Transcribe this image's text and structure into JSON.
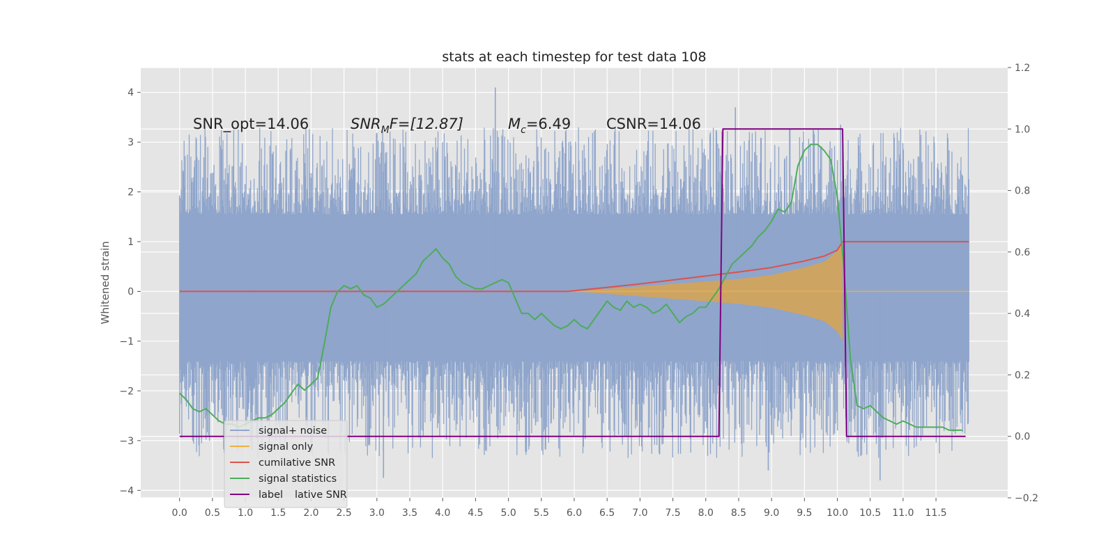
{
  "chart_data": {
    "type": "line",
    "title": "stats at each timestep for test data 108",
    "xlabel": "",
    "ylabel": "Whitened strain",
    "xlim": [
      -0.59,
      12.59
    ],
    "ylim": [
      -4.15,
      4.5
    ],
    "y2lim": [
      -0.2,
      1.2
    ],
    "x_ticks": [
      "0.0",
      "0.5",
      "1.0",
      "1.5",
      "2.0",
      "2.5",
      "3.0",
      "3.5",
      "4.0",
      "4.5",
      "5.0",
      "5.5",
      "6.0",
      "6.5",
      "7.0",
      "7.5",
      "8.0",
      "8.5",
      "9.0",
      "9.5",
      "10.0",
      "10.5",
      "11.0",
      "11.5"
    ],
    "y_ticks": [
      "4",
      "3",
      "2",
      "1",
      "0",
      "−1",
      "−2",
      "−3",
      "−4"
    ],
    "y2_ticks": [
      "1.2",
      "1.0",
      "0.8",
      "0.6",
      "0.4",
      "0.2",
      "0.0",
      "−0.2"
    ],
    "grid": true,
    "legend_placement": "lower-left",
    "annotations": {
      "snr_opt": "SNR_opt=14.06",
      "snr_mf_prefix": "SNR",
      "snr_mf_sub": "M",
      "snr_mf_suffix": "F=[12.87]",
      "mc_prefix": "M",
      "mc_sub": "c",
      "mc_suffix": "=6.49",
      "csnr": "CSNR=14.06"
    },
    "legend": [
      "signal+ noise",
      "signal only",
      "cumilative SNR",
      "signal statistics",
      "label"
    ],
    "legend_hidden_text": "lative SNR",
    "colors": {
      "noise": "#8fa5cb",
      "signal": "#e8b046",
      "cumulative": "#d9534f",
      "statistics": "#4cac5a",
      "label": "#800080",
      "background": "#e5e5e5"
    },
    "series": [
      {
        "name": "signal+ noise",
        "axis": "left",
        "noise_envelope": {
          "core_upper": 1.75,
          "core_lower": -1.5,
          "peaks_max": 4.1,
          "peaks_min": -3.75
        },
        "x_range": [
          0.0,
          12.0
        ]
      },
      {
        "name": "signal only",
        "axis": "left",
        "envelope_x": [
          6.0,
          7.0,
          8.0,
          8.5,
          9.0,
          9.5,
          9.8,
          10.0,
          10.08
        ],
        "envelope_y": [
          0.0,
          0.1,
          0.2,
          0.25,
          0.33,
          0.48,
          0.6,
          0.8,
          1.0
        ],
        "x_range": [
          0.0,
          12.0
        ]
      },
      {
        "name": "cumilative SNR",
        "axis": "left",
        "x": [
          0.0,
          5.9,
          6.5,
          7.0,
          7.5,
          8.0,
          8.5,
          9.0,
          9.5,
          9.8,
          10.0,
          10.08,
          12.0
        ],
        "y": [
          0.0,
          0.0,
          0.08,
          0.15,
          0.23,
          0.31,
          0.39,
          0.48,
          0.61,
          0.71,
          0.83,
          1.0,
          1.0
        ]
      },
      {
        "name": "signal statistics",
        "axis": "right",
        "x": [
          0.0,
          0.1,
          0.2,
          0.3,
          0.4,
          0.5,
          0.6,
          0.7,
          0.8,
          0.9,
          1.0,
          1.1,
          1.2,
          1.3,
          1.4,
          1.5,
          1.6,
          1.7,
          1.8,
          1.9,
          2.0,
          2.1,
          2.2,
          2.3,
          2.4,
          2.5,
          2.6,
          2.7,
          2.8,
          2.9,
          3.0,
          3.1,
          3.2,
          3.3,
          3.4,
          3.5,
          3.6,
          3.7,
          3.8,
          3.9,
          4.0,
          4.1,
          4.2,
          4.3,
          4.4,
          4.5,
          4.6,
          4.7,
          4.8,
          4.9,
          5.0,
          5.1,
          5.2,
          5.3,
          5.4,
          5.5,
          5.6,
          5.7,
          5.8,
          5.9,
          6.0,
          6.1,
          6.2,
          6.3,
          6.4,
          6.5,
          6.6,
          6.7,
          6.8,
          6.9,
          7.0,
          7.1,
          7.2,
          7.3,
          7.4,
          7.5,
          7.6,
          7.7,
          7.8,
          7.9,
          8.0,
          8.1,
          8.2,
          8.3,
          8.4,
          8.5,
          8.6,
          8.7,
          8.8,
          8.9,
          9.0,
          9.1,
          9.2,
          9.3,
          9.4,
          9.5,
          9.6,
          9.7,
          9.8,
          9.9,
          10.0,
          10.1,
          10.2,
          10.3,
          10.4,
          10.5,
          10.6,
          10.7,
          10.8,
          10.9,
          11.0,
          11.1,
          11.2,
          11.3,
          11.4,
          11.5,
          11.6,
          11.7,
          11.8,
          11.9
        ],
        "y": [
          0.14,
          0.12,
          0.09,
          0.08,
          0.09,
          0.07,
          0.05,
          0.04,
          0.04,
          0.03,
          0.04,
          0.05,
          0.06,
          0.06,
          0.07,
          0.09,
          0.11,
          0.14,
          0.17,
          0.15,
          0.17,
          0.19,
          0.3,
          0.42,
          0.47,
          0.49,
          0.48,
          0.49,
          0.46,
          0.45,
          0.42,
          0.43,
          0.45,
          0.47,
          0.49,
          0.51,
          0.53,
          0.57,
          0.59,
          0.61,
          0.58,
          0.56,
          0.52,
          0.5,
          0.49,
          0.48,
          0.48,
          0.49,
          0.5,
          0.51,
          0.5,
          0.45,
          0.4,
          0.4,
          0.38,
          0.4,
          0.38,
          0.36,
          0.35,
          0.36,
          0.38,
          0.36,
          0.35,
          0.38,
          0.41,
          0.44,
          0.42,
          0.41,
          0.44,
          0.42,
          0.43,
          0.42,
          0.4,
          0.41,
          0.43,
          0.4,
          0.37,
          0.39,
          0.4,
          0.42,
          0.42,
          0.45,
          0.48,
          0.52,
          0.56,
          0.58,
          0.6,
          0.62,
          0.65,
          0.67,
          0.7,
          0.74,
          0.73,
          0.76,
          0.88,
          0.93,
          0.95,
          0.95,
          0.93,
          0.9,
          0.78,
          0.55,
          0.25,
          0.1,
          0.09,
          0.1,
          0.08,
          0.06,
          0.05,
          0.04,
          0.05,
          0.04,
          0.03,
          0.03,
          0.03,
          0.03,
          0.03,
          0.02,
          0.02,
          0.02
        ]
      },
      {
        "name": "label",
        "axis": "right",
        "x": [
          0.0,
          8.2,
          8.26,
          10.08,
          10.14,
          11.95
        ],
        "y": [
          0.0,
          0.0,
          1.0,
          1.0,
          0.0,
          0.0
        ]
      }
    ]
  }
}
